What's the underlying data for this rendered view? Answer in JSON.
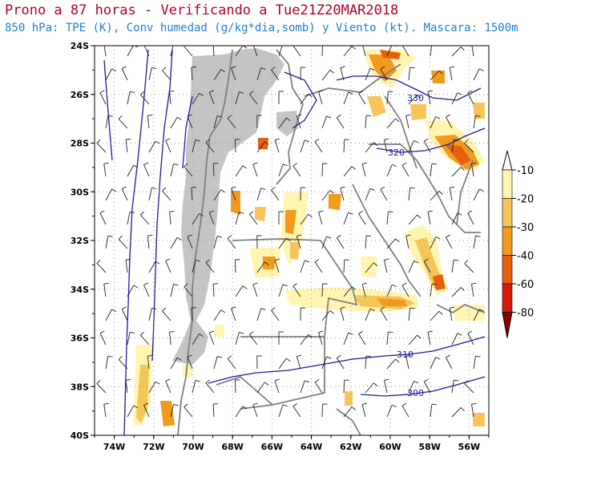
{
  "header": {
    "title": "Prono a 87 horas - Verificando a Tue21Z20MAR2018",
    "subtitle": "850 hPa: TPE (K), Conv humedad (g/kg*dia,somb) y Viento (kt). Mascara: 1500m"
  },
  "map": {
    "lon_range": [
      -75,
      -55
    ],
    "lat_range": [
      -40,
      -24
    ],
    "lon_ticks": [
      "74W",
      "72W",
      "70W",
      "68W",
      "66W",
      "64W",
      "62W",
      "60W",
      "58W",
      "56W"
    ],
    "lat_ticks": [
      "24S",
      "26S",
      "28S",
      "30S",
      "32S",
      "34S",
      "36S",
      "38S",
      "40S"
    ],
    "mask_color": "#c4c4c4",
    "isotherm_color": "#1a1aa0",
    "isotherm_labels": [
      "330",
      "320",
      "310",
      "300"
    ]
  },
  "legend": {
    "levels": [
      "-10",
      "-20",
      "-30",
      "-40",
      "-60",
      "-80"
    ],
    "colors": [
      "#ffffff",
      "#fff4b0",
      "#f5c55a",
      "#f29a1e",
      "#e65f0c",
      "#d61a0a",
      "#8c0000"
    ]
  }
}
